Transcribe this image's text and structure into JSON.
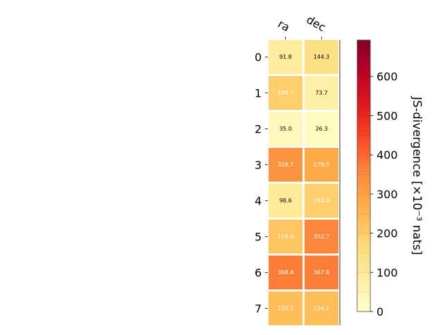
{
  "chart_data": {
    "type": "heatmap",
    "title": "",
    "columns": [
      "ra",
      "dec"
    ],
    "rows": [
      "0",
      "1",
      "2",
      "3",
      "4",
      "5",
      "6",
      "7"
    ],
    "values": [
      [
        91.8,
        144.3
      ],
      [
        198.7,
        73.7
      ],
      [
        35.0,
        26.3
      ],
      [
        329.7,
        278.5
      ],
      [
        98.6,
        193.4
      ],
      [
        216.8,
        352.7
      ],
      [
        368.8,
        367.8
      ],
      [
        233.7,
        234.1
      ]
    ],
    "value_labels": [
      [
        "91.8",
        "144.3"
      ],
      [
        "198.7",
        "73.7"
      ],
      [
        "35.0",
        "26.3"
      ],
      [
        "329.7",
        "278.5"
      ],
      [
        "98.6",
        "193.4"
      ],
      [
        "216.8",
        "352.7"
      ],
      [
        "368.8",
        "367.8"
      ],
      [
        "233.7",
        "234.1"
      ]
    ],
    "colorbar": {
      "label": "JS-divergence [×10⁻³ nats]",
      "range": [
        0,
        693
      ],
      "ticks": [
        0,
        100,
        200,
        300,
        400,
        500,
        600
      ],
      "tick_labels": [
        "0",
        "100",
        "200",
        "300",
        "400",
        "500",
        "600"
      ],
      "colormap": "YlOrRd"
    },
    "grid": false
  },
  "colors": {
    "cell_border": "#ffffff",
    "dark_text": "#000000",
    "light_text": "#ffffff"
  }
}
